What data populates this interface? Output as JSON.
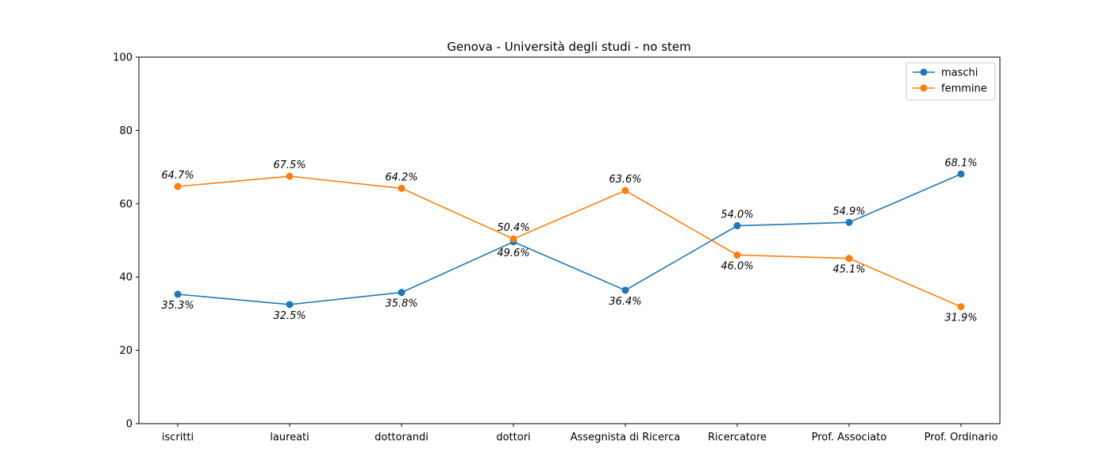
{
  "chart_data": {
    "type": "line",
    "title": "Genova - Università degli studi - no stem",
    "xlabel": "",
    "ylabel": "",
    "categories": [
      "iscritti",
      "laureati",
      "dottorandi",
      "dottori",
      "Assegnista di Ricerca",
      "Ricercatore",
      "Prof. Associato",
      "Prof. Ordinario"
    ],
    "ylim": [
      0,
      100
    ],
    "yticks": [
      0,
      20,
      40,
      60,
      80,
      100
    ],
    "grid": false,
    "legend_position": "top-right",
    "series": [
      {
        "name": "maschi",
        "color": "#1f77b4",
        "values": [
          35.3,
          32.5,
          35.8,
          49.6,
          36.4,
          54.0,
          54.9,
          68.1
        ],
        "labels": [
          "35.3%",
          "32.5%",
          "35.8%",
          "49.6%",
          "36.4%",
          "54.0%",
          "54.9%",
          "68.1%"
        ]
      },
      {
        "name": "femmine",
        "color": "#ff7f0e",
        "values": [
          64.7,
          67.5,
          64.2,
          50.4,
          63.6,
          46.0,
          45.1,
          31.9
        ],
        "labels": [
          "64.7%",
          "67.5%",
          "64.2%",
          "50.4%",
          "63.6%",
          "46.0%",
          "45.1%",
          "31.9%"
        ]
      }
    ]
  }
}
